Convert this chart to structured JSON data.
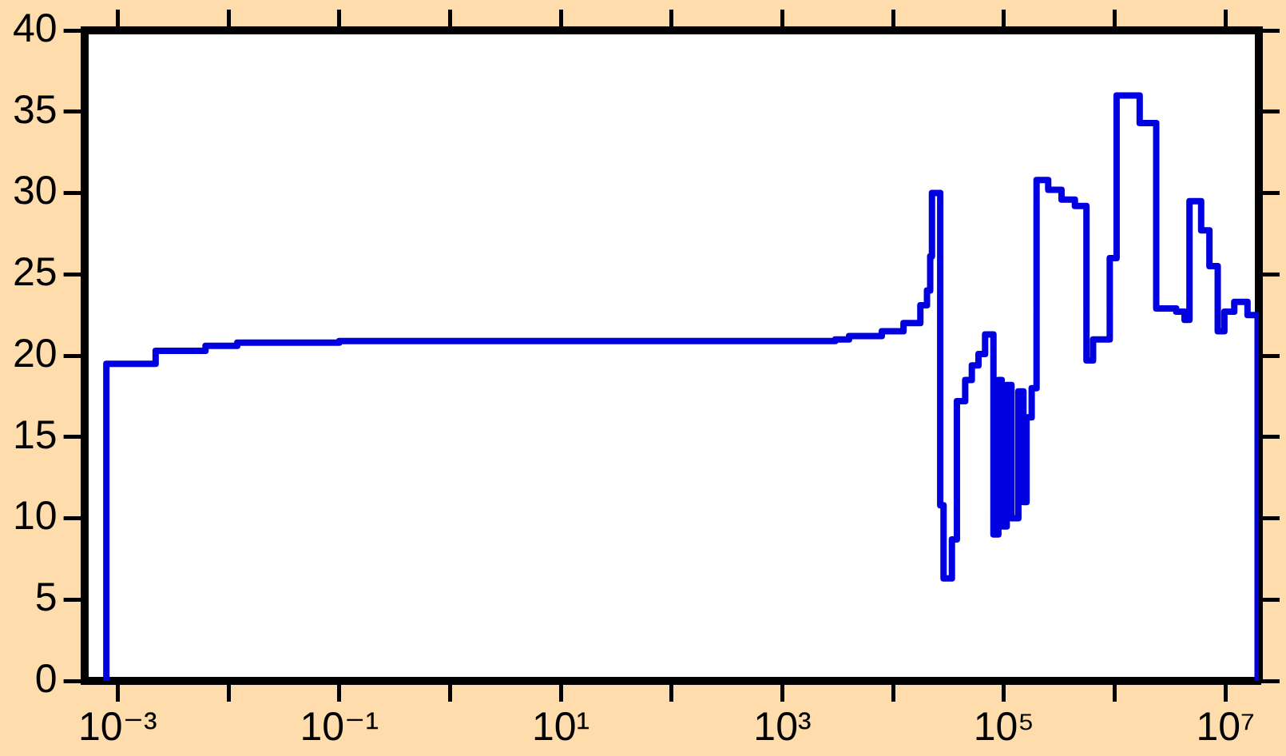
{
  "chart_data": {
    "type": "step",
    "log": "x",
    "grid": false,
    "marker": "none",
    "line_style": "solid",
    "legend": false,
    "xlim": [
      0.0005,
      20000000
    ],
    "ylim": [
      0,
      40
    ],
    "xticks": [
      {
        "value": 0.001,
        "label": "10⁻³"
      },
      {
        "value": 0.01,
        "label": null
      },
      {
        "value": 0.1,
        "label": "10⁻¹"
      },
      {
        "value": 1,
        "label": null
      },
      {
        "value": 10,
        "label": "10¹"
      },
      {
        "value": 100,
        "label": null
      },
      {
        "value": 1000,
        "label": "10³"
      },
      {
        "value": 10000,
        "label": null
      },
      {
        "value": 100000,
        "label": "10⁵"
      },
      {
        "value": 1000000,
        "label": null
      },
      {
        "value": 10000000,
        "label": "10⁷"
      }
    ],
    "yticks": [
      0,
      5,
      10,
      15,
      20,
      25,
      30,
      35,
      40
    ],
    "series": [
      {
        "color": "#0000e0",
        "x": [
          0.00079,
          0.00079,
          0.0022,
          0.0062,
          0.012,
          0.03,
          0.1,
          1,
          10,
          100,
          1000,
          3000,
          4000,
          7900,
          12400,
          17600,
          20200,
          21600,
          22400,
          26600,
          28500,
          33900,
          37600,
          44700,
          51300,
          58900,
          67600,
          80400,
          89100,
          95500,
          106000,
          117000,
          135000,
          150000,
          160000,
          178000,
          197000,
          251000,
          331000,
          437000,
          556000,
          638000,
          902000,
          1040000,
          1680000,
          2370000,
          3590000,
          4270000,
          4730000,
          6030000,
          7160000,
          8510000,
          9770000,
          12000000,
          15800000,
          19500000
        ],
        "values": [
          0,
          19.5,
          20.3,
          20.6,
          20.8,
          20.8,
          20.9,
          20.9,
          20.9,
          20.9,
          20.9,
          21.0,
          21.2,
          21.5,
          22.0,
          23.1,
          24.0,
          26.1,
          30.0,
          10.8,
          6.3,
          8.7,
          17.2,
          18.5,
          19.4,
          20.1,
          21.3,
          9.0,
          18.5,
          9.5,
          18.2,
          10.0,
          17.8,
          11.0,
          16.2,
          18.0,
          30.8,
          30.2,
          29.6,
          29.2,
          19.7,
          21.0,
          26.0,
          36.0,
          34.3,
          22.9,
          22.7,
          22.2,
          29.5,
          27.7,
          25.5,
          21.5,
          22.7,
          23.3,
          22.5,
          0
        ]
      }
    ]
  }
}
